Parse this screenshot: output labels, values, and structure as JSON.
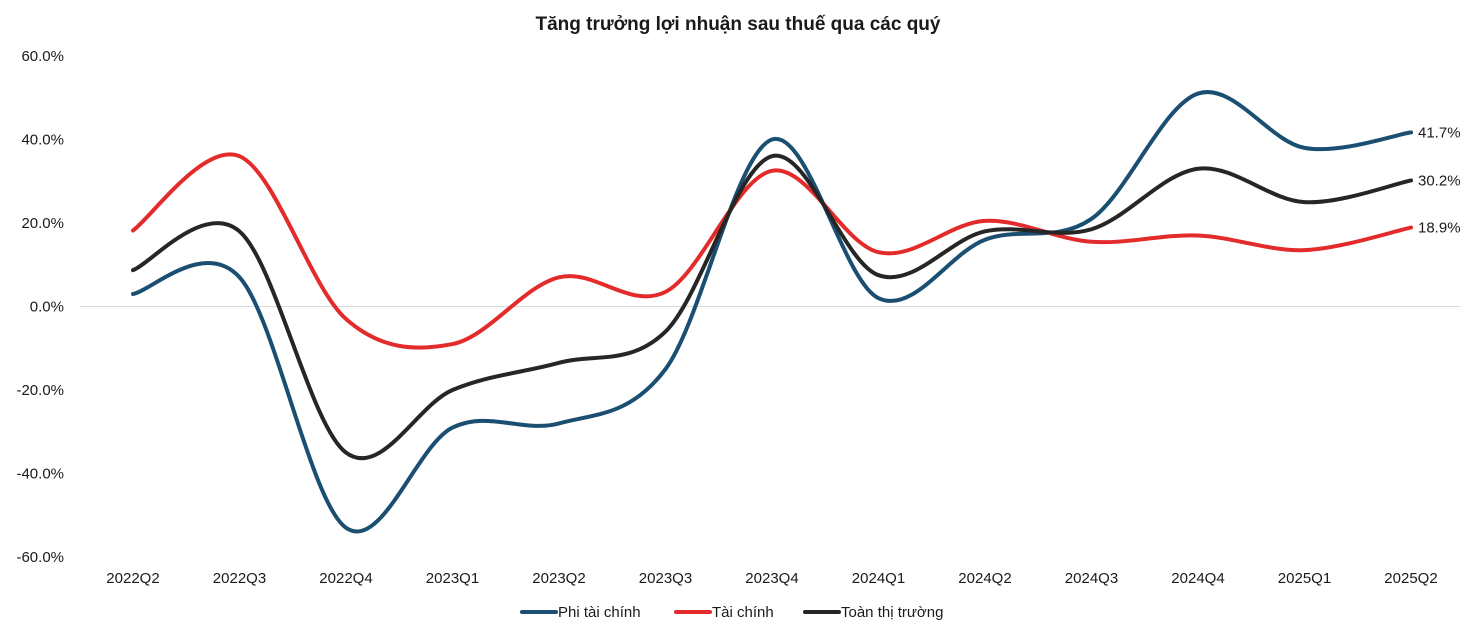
{
  "chart_data": {
    "type": "line",
    "title": "Tăng trưởng lợi nhuận sau thuế qua các quý",
    "xlabel": "",
    "ylabel": "",
    "ylim": [
      -60,
      60
    ],
    "yticks": [
      60,
      40,
      20,
      0,
      -20,
      -40,
      -60
    ],
    "ytick_labels": [
      "60.0%",
      "40.0%",
      "20.0%",
      "0.0%",
      "-20.0%",
      "-40.0%",
      "-60.0%"
    ],
    "categories": [
      "2022Q2",
      "2022Q3",
      "2022Q4",
      "2023Q1",
      "2023Q2",
      "2023Q3",
      "2023Q4",
      "2024Q1",
      "2024Q2",
      "2024Q3",
      "2024Q4",
      "2025Q1",
      "2025Q2"
    ],
    "grid": false,
    "legend": "bottom",
    "series": [
      {
        "name": "Phi tài chính",
        "color": "#1b4f72",
        "values": [
          3.0,
          7.0,
          -53.0,
          -29.0,
          -28.0,
          -15.0,
          40.0,
          2.0,
          16.0,
          21.0,
          51.0,
          38.0,
          41.7
        ]
      },
      {
        "name": "Tài chính",
        "color": "#e32b2b",
        "values": [
          18.2,
          36.0,
          -3.0,
          -9.0,
          7.0,
          3.5,
          32.5,
          13.0,
          20.5,
          15.5,
          17.0,
          13.5,
          18.9
        ]
      },
      {
        "name": "Toàn thị trường",
        "color": "#262626",
        "values": [
          8.7,
          18.0,
          -35.0,
          -20.0,
          -13.5,
          -6.0,
          36.0,
          7.5,
          18.0,
          18.5,
          33.0,
          25.0,
          30.2
        ]
      }
    ],
    "end_labels": [
      "41.7%",
      "18.9%",
      "30.2%"
    ]
  }
}
